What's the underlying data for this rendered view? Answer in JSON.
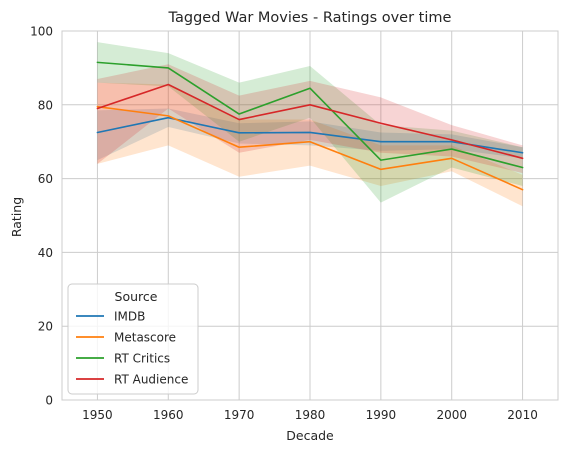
{
  "chart_data": {
    "type": "line",
    "title": "Tagged War Movies - Ratings over time",
    "xlabel": "Decade",
    "ylabel": "Rating",
    "x": [
      1950,
      1960,
      1970,
      1980,
      1990,
      2000,
      2010
    ],
    "xlim": [
      1945,
      2015
    ],
    "ylim": [
      0,
      100
    ],
    "xticks": [
      "1950",
      "1960",
      "1970",
      "1980",
      "1990",
      "2000",
      "2010"
    ],
    "yticks": [
      "0",
      "20",
      "40",
      "60",
      "80",
      "100"
    ],
    "grid": true,
    "legend": {
      "title": "Source",
      "placement": "lower-left"
    },
    "series": [
      {
        "name": "IMDB",
        "color": "#1f77b4",
        "values": [
          72.5,
          76.5,
          72.4,
          72.5,
          70.0,
          70.0,
          67.0
        ],
        "lower": [
          65.0,
          74.0,
          69.5,
          69.0,
          67.5,
          68.0,
          65.5
        ],
        "upper": [
          78.5,
          79.0,
          75.0,
          75.5,
          72.5,
          72.0,
          68.5
        ]
      },
      {
        "name": "Metascore",
        "color": "#ff7f0e",
        "values": [
          79.5,
          77.0,
          68.5,
          70.0,
          62.5,
          65.5,
          57.0
        ],
        "lower": [
          64.0,
          69.0,
          60.5,
          63.5,
          58.0,
          62.0,
          52.5
        ],
        "upper": [
          86.0,
          85.5,
          76.0,
          76.0,
          69.0,
          69.0,
          61.0
        ]
      },
      {
        "name": "RT Critics",
        "color": "#2ca02c",
        "values": [
          91.5,
          90.0,
          77.5,
          84.5,
          65.0,
          68.0,
          63.0
        ],
        "lower": [
          86.0,
          85.0,
          70.0,
          76.5,
          53.5,
          63.0,
          58.0
        ],
        "upper": [
          97.0,
          94.0,
          86.0,
          90.5,
          74.5,
          73.0,
          68.5
        ]
      },
      {
        "name": "RT Audience",
        "color": "#d62728",
        "values": [
          79.0,
          85.5,
          76.0,
          80.0,
          75.0,
          70.5,
          65.5
        ],
        "lower": [
          64.0,
          79.0,
          67.0,
          70.5,
          67.0,
          66.0,
          61.5
        ],
        "upper": [
          87.0,
          91.0,
          82.5,
          86.5,
          82.0,
          74.5,
          69.0
        ]
      }
    ]
  }
}
